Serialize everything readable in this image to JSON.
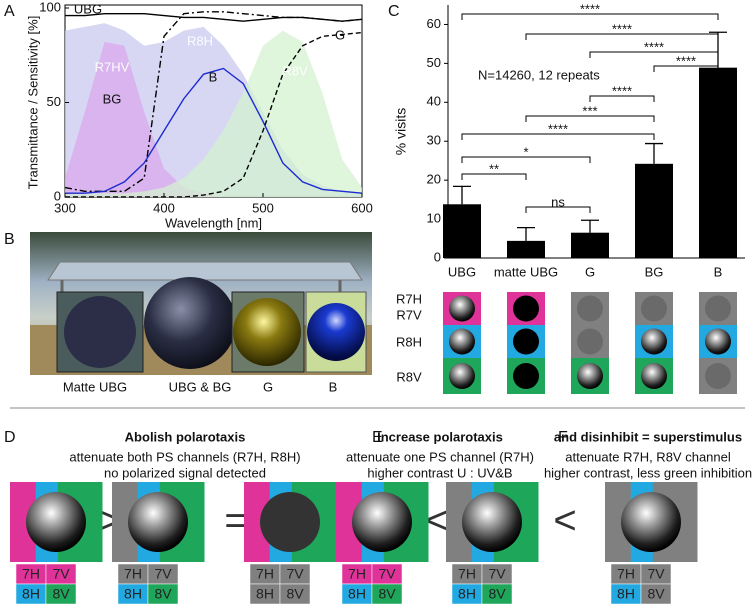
{
  "chart_data": [
    {
      "type": "line",
      "panel": "A",
      "xlabel": "Wavelength [nm]",
      "ylabel": "Transmittance / Sensitivity [%]",
      "x": [
        300,
        320,
        340,
        360,
        380,
        400,
        420,
        440,
        460,
        480,
        500,
        520,
        540,
        560,
        580,
        600
      ],
      "xlim": [
        300,
        600
      ],
      "ylim": [
        0,
        100
      ],
      "xticks": [
        300,
        400,
        500,
        600
      ],
      "yticks": [
        0,
        50,
        100
      ],
      "series": [
        {
          "name": "R8H",
          "style": "area",
          "color": "#c9c9f0",
          "values": [
            88,
            90,
            92,
            88,
            80,
            82,
            88,
            90,
            80,
            65,
            45,
            25,
            12,
            6,
            3,
            2
          ]
        },
        {
          "name": "R7HV",
          "style": "area",
          "color": "#d9a8ec",
          "values": [
            10,
            45,
            82,
            80,
            45,
            15,
            5,
            2,
            0,
            0,
            0,
            0,
            0,
            0,
            0,
            0
          ]
        },
        {
          "name": "R8V",
          "style": "area",
          "color": "#d4f2d0",
          "values": [
            2,
            2,
            2,
            2,
            3,
            5,
            10,
            20,
            35,
            55,
            80,
            88,
            82,
            55,
            20,
            5
          ]
        },
        {
          "name": "UBG",
          "style": "solid",
          "color": "#000000",
          "values": [
            96,
            96,
            97,
            97,
            97,
            96,
            95,
            95,
            94,
            93,
            94,
            95,
            95,
            94,
            93,
            94
          ]
        },
        {
          "name": "BG",
          "style": "dashdot",
          "color": "#000000",
          "values": [
            5,
            3,
            3,
            3,
            10,
            85,
            97,
            98,
            98,
            97,
            96,
            95,
            95,
            94,
            93,
            94
          ]
        },
        {
          "name": "B",
          "style": "solid",
          "color": "#1c2bd0",
          "values": [
            2,
            2,
            3,
            8,
            18,
            35,
            52,
            65,
            68,
            60,
            40,
            18,
            8,
            4,
            3,
            2
          ]
        },
        {
          "name": "G",
          "style": "dashed",
          "color": "#000000",
          "values": [
            0,
            0,
            0,
            0,
            0,
            0,
            0,
            1,
            3,
            10,
            35,
            65,
            80,
            85,
            86,
            87
          ]
        }
      ]
    },
    {
      "type": "bar",
      "panel": "C",
      "ylabel": "% visits",
      "categories": [
        "UBG",
        "matte UBG",
        "G",
        "BG",
        "B"
      ],
      "values": [
        13.8,
        4.4,
        6.5,
        24.2,
        48.9
      ],
      "errors": [
        4.6,
        3.4,
        3.2,
        5.2,
        9.1
      ],
      "color": "#000000",
      "ylim": [
        0,
        65
      ],
      "yticks": [
        0,
        10,
        20,
        30,
        40,
        50,
        60
      ],
      "annotation": "N=14260, 12 repeats",
      "brackets": [
        {
          "pair": [
            "UBG",
            "B"
          ],
          "label": "****"
        },
        {
          "pair": [
            "matte UBG",
            "B"
          ],
          "label": "****"
        },
        {
          "pair": [
            "G",
            "B"
          ],
          "label": "****"
        },
        {
          "pair": [
            "BG",
            "B"
          ],
          "label": "****"
        },
        {
          "pair": [
            "G",
            "BG"
          ],
          "label": "****"
        },
        {
          "pair": [
            "matte UBG",
            "BG"
          ],
          "label": "***"
        },
        {
          "pair": [
            "UBG",
            "BG"
          ],
          "label": "****"
        },
        {
          "pair": [
            "UBG",
            "G"
          ],
          "label": "*"
        },
        {
          "pair": [
            "UBG",
            "matte UBG"
          ],
          "label": "**"
        },
        {
          "pair": [
            "matte UBG",
            "G"
          ],
          "label": "ns"
        }
      ],
      "receptor_labels": [
        "R7H",
        "R7V",
        "R8H",
        "R8V"
      ]
    }
  ],
  "panel_b": {
    "panel": "B",
    "labels": [
      "Matte UBG",
      "UBG & BG",
      "G",
      "B"
    ]
  },
  "panel_d": {
    "panel": "D",
    "title": "Abolish polarotaxis",
    "lines": [
      "attenuate both PS channels (R7H, R8H)",
      "no polarized signal detected"
    ],
    "operators": [
      ">",
      "="
    ]
  },
  "panel_e": {
    "panel": "E",
    "title": "Increase polarotaxis",
    "lines": [
      "attenuate one PS channel (R7H)",
      "higher contrast U : UV&B"
    ],
    "operators": [
      "<"
    ]
  },
  "panel_f": {
    "panel": "F",
    "title": "and disinhibit = superstimulus",
    "lines": [
      "attenuate R7H, R8V channel",
      "higher contrast, less green inhibition"
    ],
    "operators": [
      "<"
    ]
  },
  "channel_labels": [
    "7H",
    "7V",
    "8H",
    "8V"
  ]
}
